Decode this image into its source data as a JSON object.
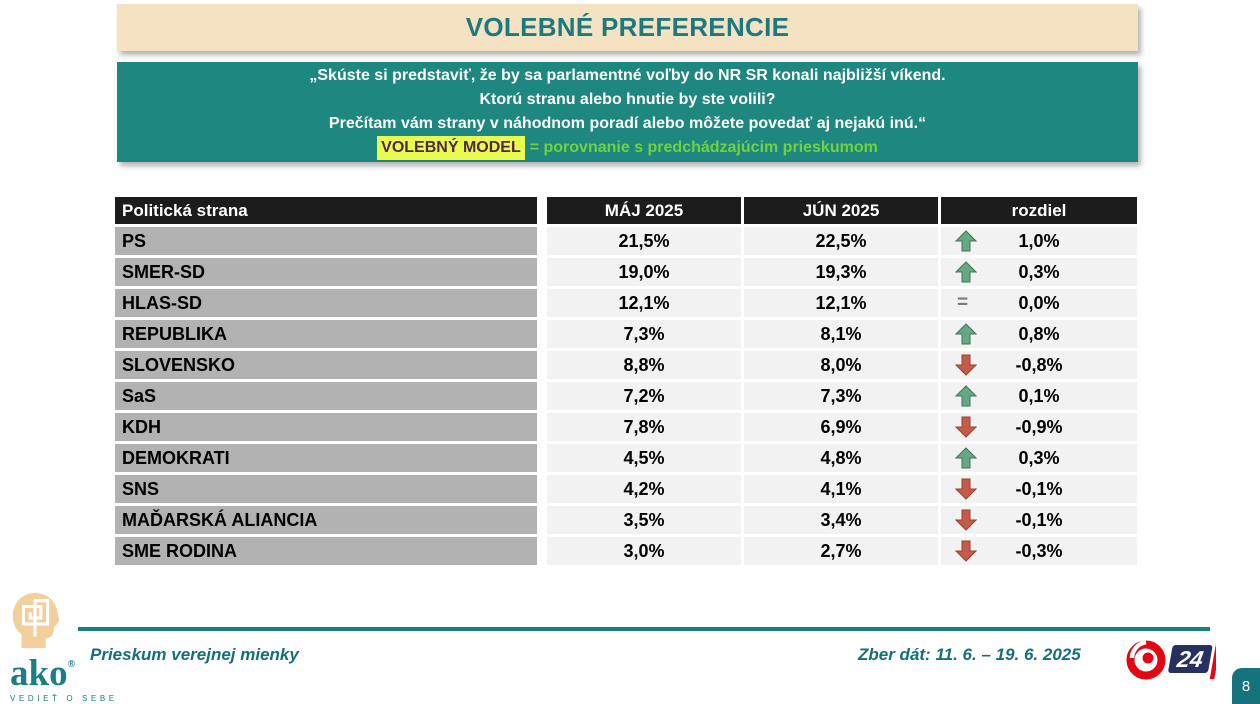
{
  "title": "VOLEBNÉ PREFERENCIE",
  "question_box": {
    "lines": [
      "„Skúste si predstaviť, že by sa parlamentné voľby do NR SR konali najbližší víkend.",
      "Ktorú stranu alebo hnutie by ste volili?",
      "Prečítam vám strany v náhodnom poradí alebo môžete povedať aj nejakú inú.“"
    ],
    "highlight_label": "VOLEBNÝ MODEL",
    "comparison_note": "= porovnanie s predchádzajúcim prieskumom"
  },
  "table": {
    "headers": [
      "Politická strana",
      "MÁJ 2025",
      "JÚN 2025",
      "rozdiel"
    ],
    "rows": [
      {
        "party": "PS",
        "may": "21,5%",
        "jun": "22,5%",
        "trend": "up",
        "diff": "1,0%"
      },
      {
        "party": "SMER-SD",
        "may": "19,0%",
        "jun": "19,3%",
        "trend": "up",
        "diff": "0,3%"
      },
      {
        "party": "HLAS-SD",
        "may": "12,1%",
        "jun": "12,1%",
        "trend": "equal",
        "diff": "0,0%"
      },
      {
        "party": "REPUBLIKA",
        "may": "7,3%",
        "jun": "8,1%",
        "trend": "up",
        "diff": "0,8%"
      },
      {
        "party": "SLOVENSKO",
        "may": "8,8%",
        "jun": "8,0%",
        "trend": "down",
        "diff": "-0,8%"
      },
      {
        "party": "SaS",
        "may": "7,2%",
        "jun": "7,3%",
        "trend": "up",
        "diff": "0,1%"
      },
      {
        "party": "KDH",
        "may": "7,8%",
        "jun": "6,9%",
        "trend": "down",
        "diff": "-0,9%"
      },
      {
        "party": "DEMOKRATI",
        "may": "4,5%",
        "jun": "4,8%",
        "trend": "up",
        "diff": "0,3%"
      },
      {
        "party": "SNS",
        "may": "4,2%",
        "jun": "4,1%",
        "trend": "down",
        "diff": "-0,1%"
      },
      {
        "party": "MAĎARSKÁ ALIANCIA",
        "may": "3,5%",
        "jun": "3,4%",
        "trend": "down",
        "diff": "-0,1%"
      },
      {
        "party": "SME RODINA",
        "may": "3,0%",
        "jun": "2,7%",
        "trend": "down",
        "diff": "-0,3%"
      }
    ]
  },
  "footer": {
    "ako_logo": {
      "word": "ako",
      "registered": "®",
      "tagline": "VEDIEŤ O SEBE"
    },
    "survey_caption": "Prieskum verejnej mienky",
    "data_collection": "Zber dát: 11. 6. – 19. 6. 2025",
    "joj24_label": "24",
    "page_number": "8"
  },
  "colors": {
    "title_bg": "#f5e2c2",
    "title_text": "#1b7a80",
    "question_bg": "#1e8780",
    "highlight_bg": "#e9fb4d",
    "highlight_text": "#50284a",
    "note_green": "#72d23e",
    "header_bg": "#1c1c1c",
    "party_cell_bg": "#b2b2b2",
    "value_cell_bg": "#f2f2f2",
    "arrow_up": "#66a886",
    "arrow_up_stroke": "#43725b",
    "arrow_down": "#c75b4b",
    "arrow_down_stroke": "#96402f",
    "equal_gray": "#7a7a7a",
    "footer_teal": "#156f7b",
    "joj_red": "#e30613",
    "joj_navy": "#27305e",
    "badge_bg": "#17737b"
  }
}
